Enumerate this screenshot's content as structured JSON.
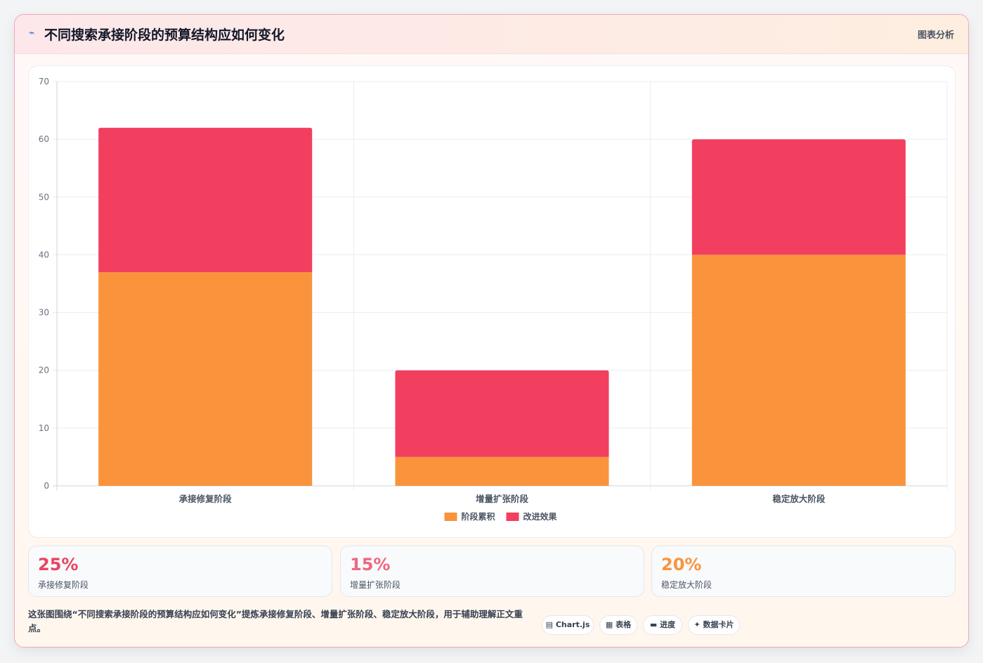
{
  "header": {
    "icon": "sparkle-icon",
    "title": "不同搜索承接阶段的预算结构应如何变化",
    "link_label": "图表分析"
  },
  "chart_data": {
    "type": "bar",
    "stacked": true,
    "categories": [
      "承接修复阶段",
      "增量扩张阶段",
      "稳定放大阶段"
    ],
    "series": [
      {
        "name": "阶段累积",
        "color": "#f9943d",
        "values": [
          37,
          5,
          40
        ]
      },
      {
        "name": "改进效果",
        "color": "#f23f60",
        "values": [
          25,
          15,
          20
        ]
      }
    ],
    "ylim": [
      0,
      70
    ],
    "yticks": [
      0,
      10,
      20,
      30,
      40,
      50,
      60,
      70
    ],
    "grid": true,
    "legend": "bottom"
  },
  "stats": [
    {
      "value": "25%",
      "label": "承接修复阶段",
      "color": "#e8455f"
    },
    {
      "value": "15%",
      "label": "增量扩张阶段",
      "color": "#f0677e"
    },
    {
      "value": "20%",
      "label": "稳定放大阶段",
      "color": "#f9943d"
    }
  ],
  "footer": {
    "description": "这张图围绕“不同搜索承接阶段的预算结构应如何变化”提炼承接修复阶段、增量扩张阶段、稳定放大阶段，用于辅助理解正文重点。",
    "tags": [
      {
        "icon": "chart-icon",
        "label": "Chart.js"
      },
      {
        "icon": "table-icon",
        "label": "表格"
      },
      {
        "icon": "progress-icon",
        "label": "进度"
      },
      {
        "icon": "card-icon",
        "label": "数据卡片"
      }
    ]
  }
}
